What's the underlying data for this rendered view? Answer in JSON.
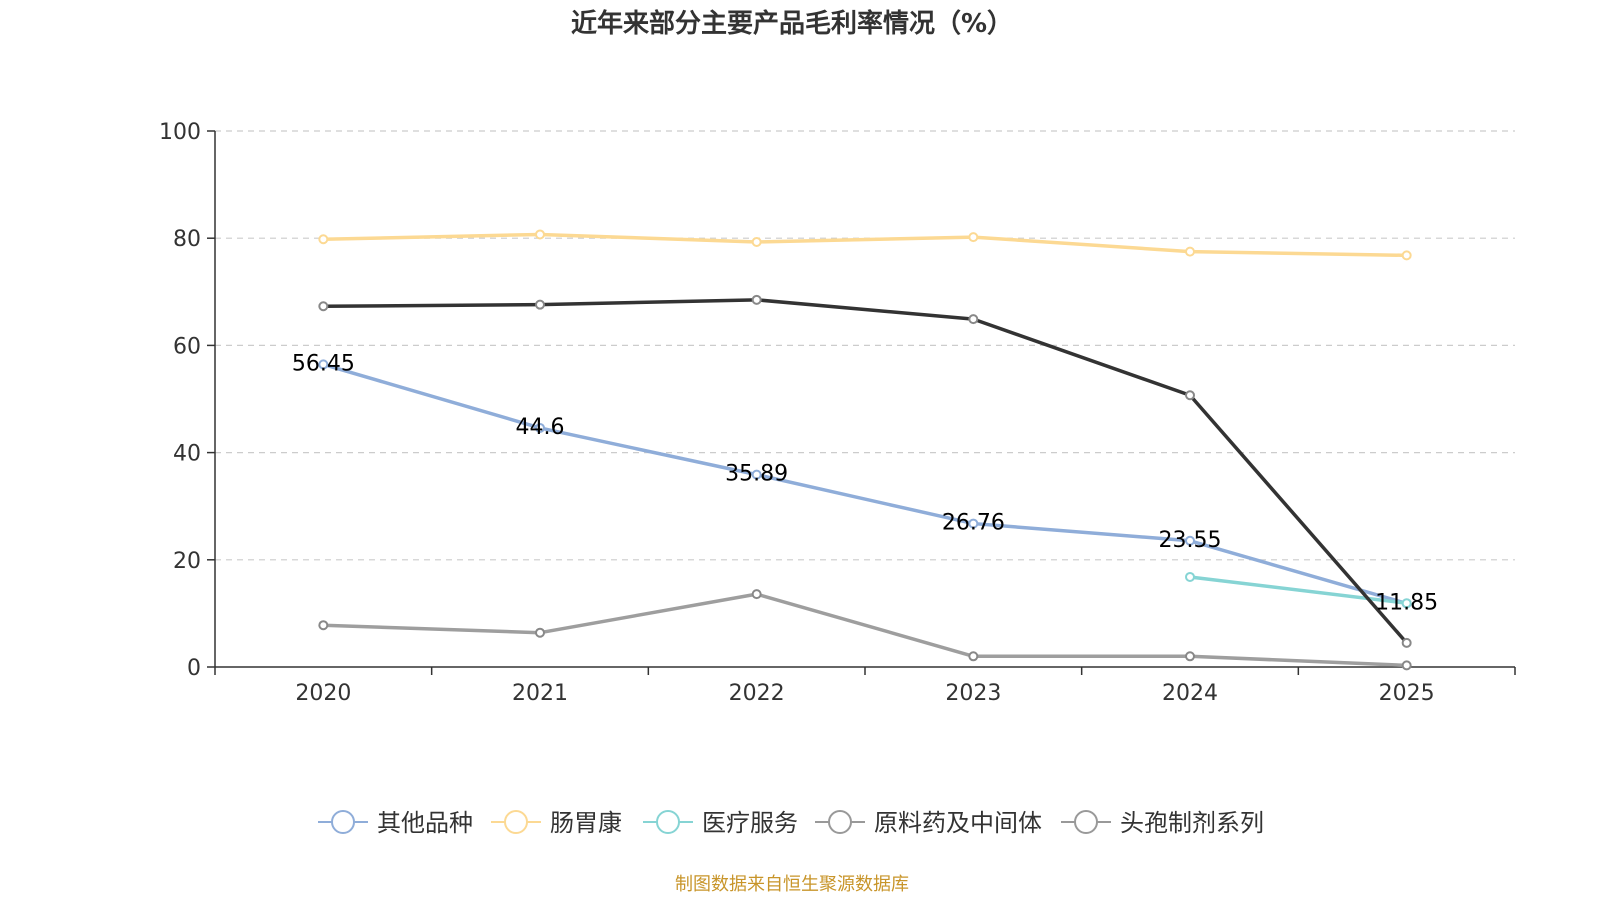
{
  "chart_data": {
    "type": "line",
    "title": "近年来部分主要产品毛利率情况（%）",
    "xlabel": "",
    "ylabel": "",
    "categories": [
      "2020",
      "2021",
      "2022",
      "2023",
      "2024",
      "2025"
    ],
    "ylim": [
      0,
      100
    ],
    "yticks": [
      "0",
      "20",
      "40",
      "60",
      "80",
      "100"
    ],
    "grid": true,
    "legend_position": "bottom",
    "series": [
      {
        "name": "其他品种",
        "color": "#8fadd9",
        "values": [
          56.45,
          44.6,
          35.89,
          26.76,
          23.55,
          11.85
        ],
        "labels": [
          "56.45",
          "44.6",
          "35.89",
          "26.76",
          "23.55",
          "11.85"
        ],
        "show_labels": true
      },
      {
        "name": "肠胃康",
        "color": "#fcd993",
        "values": [
          79.8,
          80.7,
          79.3,
          80.2,
          77.5,
          76.8
        ],
        "show_labels": false
      },
      {
        "name": "医疗服务",
        "color": "#86d4d4",
        "values": [
          null,
          null,
          null,
          null,
          16.8,
          11.9
        ],
        "show_labels": false
      },
      {
        "name": "原料药及中间体",
        "color": "#333333",
        "values": [
          67.3,
          67.6,
          68.5,
          64.9,
          50.7,
          4.5
        ],
        "show_labels": false
      },
      {
        "name": "头孢制剂系列",
        "color": "#9e9e9e",
        "values": [
          7.8,
          6.4,
          13.6,
          2.0,
          2.0,
          0.3
        ],
        "show_labels": false
      }
    ],
    "legend_colors": [
      "#8fadd9",
      "#fcd993",
      "#86d4d4",
      "#999999",
      "#999999"
    ],
    "source": "制图数据来自恒生聚源数据库"
  }
}
